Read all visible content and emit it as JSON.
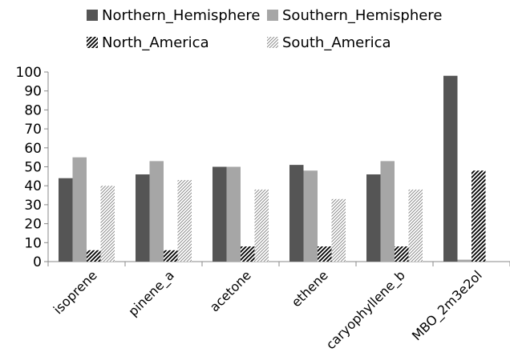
{
  "chart_data": {
    "type": "bar",
    "title": "",
    "xlabel": "",
    "ylabel": "",
    "ylim": [
      0,
      100
    ],
    "yticks": [
      0,
      10,
      20,
      30,
      40,
      50,
      60,
      70,
      80,
      90,
      100
    ],
    "grid": false,
    "legend_position": "top",
    "categories": [
      "isoprene",
      "pinene_a",
      "acetone",
      "ethene",
      "caryophyllene_b",
      "MBO_2m3e2ol"
    ],
    "series": [
      {
        "name": "Northern_Hemisphere",
        "values": [
          44,
          46,
          50,
          51,
          46,
          98
        ],
        "color": "#555555",
        "pattern": "solid"
      },
      {
        "name": "Southern_Hemisphere",
        "values": [
          55,
          53,
          50,
          48,
          53,
          1
        ],
        "color": "#a6a6a6",
        "pattern": "solid"
      },
      {
        "name": "North_America",
        "values": [
          6,
          6,
          8,
          8,
          8,
          48
        ],
        "color": "#000000",
        "pattern": "dense-diagonal"
      },
      {
        "name": "South_America",
        "values": [
          40,
          43,
          38,
          33,
          38,
          0
        ],
        "color": "#7f7f7f",
        "pattern": "light-diagonal"
      }
    ]
  }
}
